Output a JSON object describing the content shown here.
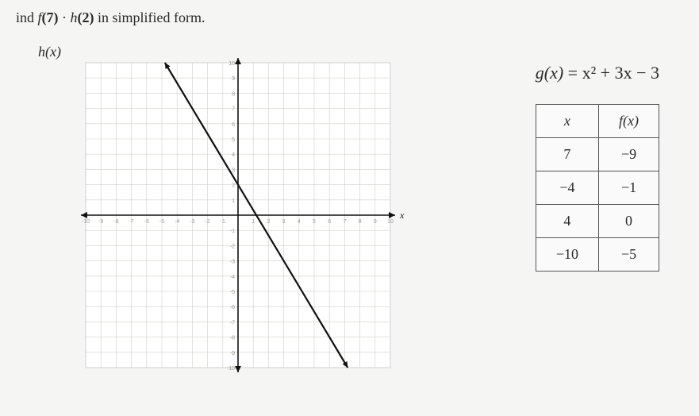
{
  "prompt": {
    "prefix": "ind ",
    "expr_f": "f",
    "arg_f": "(7)",
    "dot": " · ",
    "expr_h": "h",
    "arg_h": "(2)",
    "suffix": " in simplified form."
  },
  "graph": {
    "label": "h(x)",
    "xlim": [
      -10,
      10
    ],
    "ylim": [
      -10,
      10
    ],
    "tick_step": 1,
    "grid_color": "#d0d0cc",
    "minor_grid_color": "#e2e2de",
    "axis_color": "#111111",
    "background": "#ffffff",
    "line": {
      "color": "#111111",
      "width": 2.2,
      "points": [
        [
          -4.8,
          10
        ],
        [
          7.2,
          -10
        ]
      ],
      "arrow_size": 8
    },
    "axis_arrow_size": 8,
    "x_axis_label": "x",
    "tick_labels_x": [
      -10,
      -9,
      -8,
      -7,
      -6,
      -5,
      -4,
      -3,
      -2,
      -1,
      1,
      2,
      3,
      4,
      5,
      6,
      7,
      8,
      9,
      10
    ],
    "tick_labels_y": [
      -10,
      -9,
      -8,
      -7,
      -6,
      -5,
      -4,
      -3,
      -2,
      -1,
      1,
      2,
      3,
      4,
      5,
      6,
      7,
      8,
      9,
      10
    ],
    "tick_font_size": 7,
    "tick_color": "#9a9a94"
  },
  "equation": {
    "lhs": "g(x)",
    "rhs": " = x² + 3x − 3"
  },
  "table": {
    "header_x": "x",
    "header_fx": "f(x)",
    "rows": [
      {
        "x": "7",
        "fx": "−9"
      },
      {
        "x": "−4",
        "fx": "−1"
      },
      {
        "x": "4",
        "fx": "0"
      },
      {
        "x": "−10",
        "fx": "−5"
      }
    ],
    "border_color": "#555555",
    "cell_bg": "#fafafa"
  }
}
